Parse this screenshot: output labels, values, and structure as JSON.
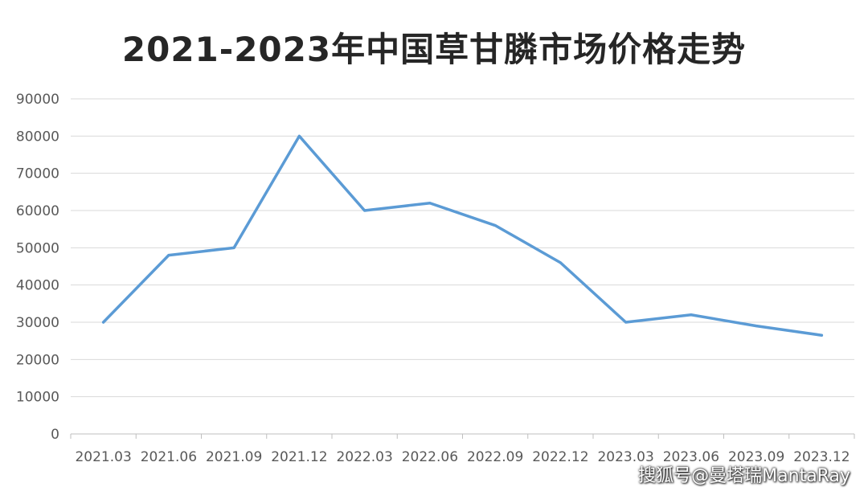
{
  "chart_data": {
    "type": "line",
    "title": "2021-2023年中国草甘膦市场价格走势",
    "xlabel": "",
    "ylabel": "",
    "categories": [
      "2021.03",
      "2021.06",
      "2021.09",
      "2021.12",
      "2022.03",
      "2022.06",
      "2022.09",
      "2022.12",
      "2023.03",
      "2023.06",
      "2023.09",
      "2023.12"
    ],
    "series": [
      {
        "values": [
          30000,
          48000,
          50000,
          80000,
          60000,
          62000,
          56000,
          46000,
          30000,
          32000,
          29000,
          26500
        ]
      }
    ],
    "ylim": [
      0,
      90000
    ],
    "yticks": [
      "0",
      "10000",
      "20000",
      "30000",
      "40000",
      "50000",
      "60000",
      "70000",
      "80000",
      "90000"
    ],
    "grid": true,
    "legend": "none",
    "line_color": "#5b9bd5"
  },
  "watermark": "搜狐号@曼塔瑞MantaRay"
}
